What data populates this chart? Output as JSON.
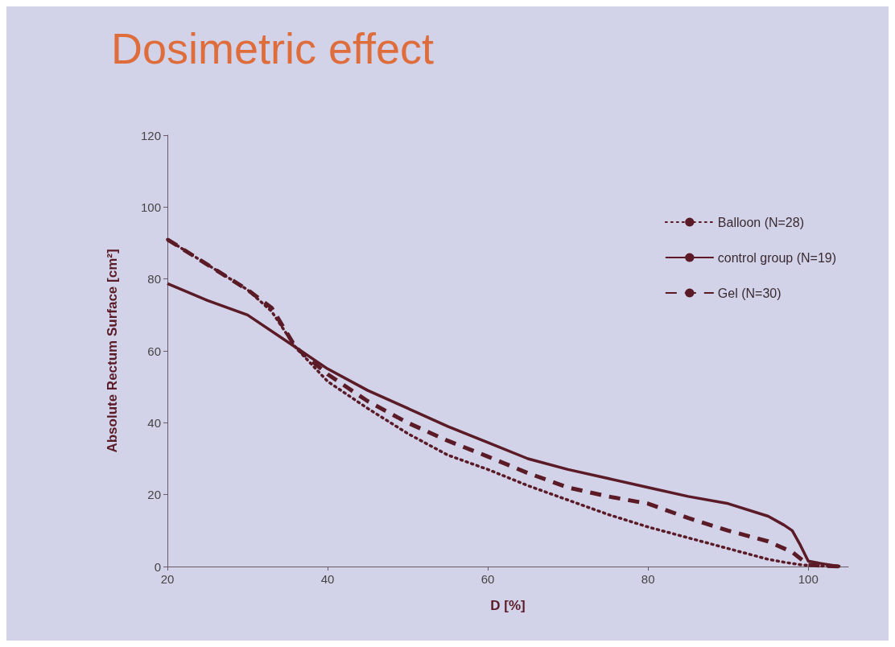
{
  "chart_data": {
    "type": "line",
    "title": "Dosimetric effect",
    "xlabel": "D [%]",
    "ylabel": "Absolute Rectum Surface [cm²]",
    "xlim": [
      20,
      105
    ],
    "xticks": [
      20,
      40,
      60,
      80,
      100
    ],
    "ylim": [
      0,
      120
    ],
    "yticks": [
      0,
      20,
      40,
      60,
      80,
      100,
      120
    ],
    "grid": false,
    "legend": "top right",
    "marker": "none",
    "series": [
      {
        "name": "Balloon (N=28)",
        "color": "#5a1a26",
        "line_style": "dotted",
        "x": [
          20,
          25,
          30,
          33,
          36,
          40,
          45,
          50,
          55,
          60,
          65,
          70,
          75,
          80,
          85,
          90,
          95,
          97,
          99,
          101,
          103
        ],
        "values": [
          91,
          84,
          77,
          71,
          61,
          51.5,
          44,
          37,
          31,
          27,
          22.5,
          18.5,
          14.5,
          11,
          8,
          5,
          2,
          1.2,
          0.5,
          0.2,
          0
        ]
      },
      {
        "name": "control group (N=19)",
        "color": "#5a1a26",
        "line_style": "solid",
        "x": [
          20,
          25,
          30,
          36,
          40,
          45,
          50,
          55,
          60,
          65,
          70,
          75,
          80,
          85,
          90,
          95,
          97,
          98,
          99,
          100,
          102,
          104
        ],
        "values": [
          78.7,
          74,
          70,
          61,
          55,
          49,
          44,
          39,
          34.5,
          30,
          27,
          24.5,
          22,
          19.5,
          17.5,
          14,
          11.5,
          10,
          6,
          1.5,
          0.7,
          0
        ]
      },
      {
        "name": "Gel (N=30)",
        "color": "#5a1a26",
        "line_style": "dashed",
        "x": [
          20,
          25,
          30,
          33,
          36,
          40,
          45,
          50,
          55,
          60,
          65,
          70,
          75,
          80,
          85,
          90,
          95,
          98,
          100,
          102,
          104
        ],
        "values": [
          91,
          84,
          77,
          72,
          61,
          53.5,
          46,
          40,
          35,
          30.6,
          26,
          22,
          19.5,
          17.5,
          13.5,
          10,
          7,
          4,
          0.5,
          0.2,
          0
        ]
      }
    ]
  }
}
